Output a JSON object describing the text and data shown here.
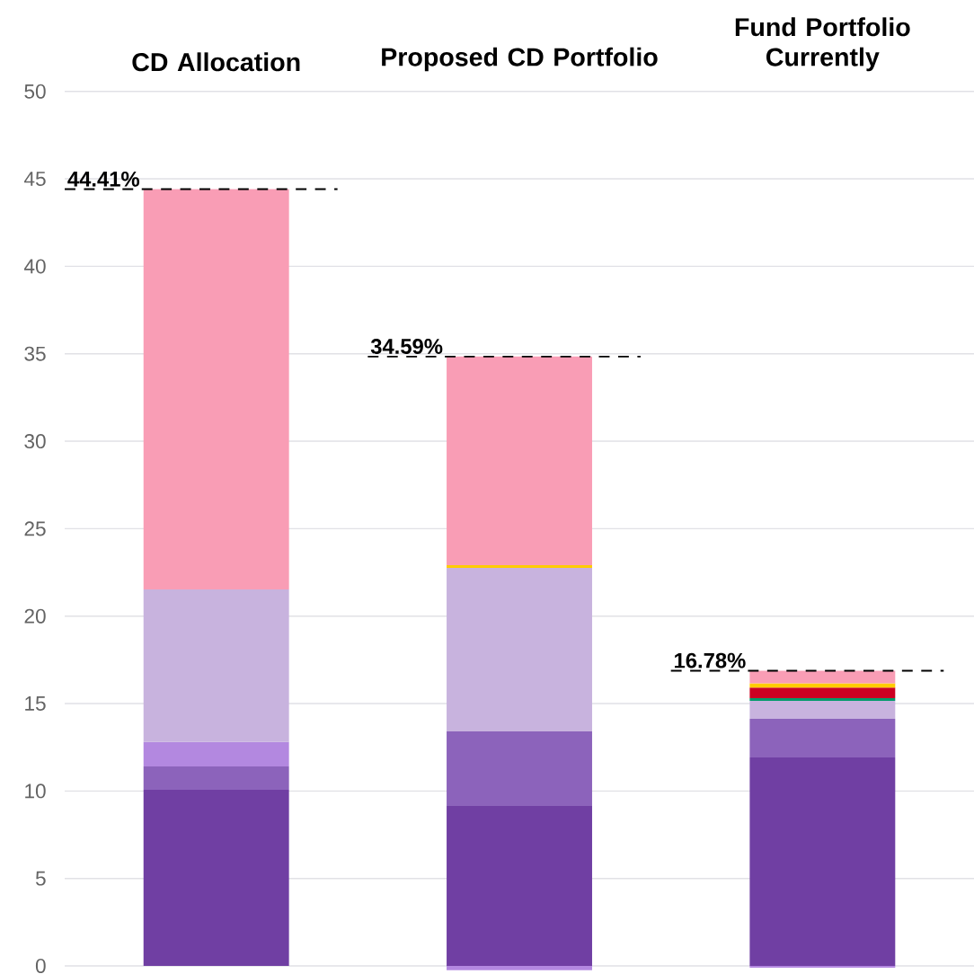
{
  "chart_data": {
    "type": "bar",
    "stacked": true,
    "categories": [
      "CD Allocation",
      "Proposed CD Portfolio",
      "Fund Portfolio Currently"
    ],
    "series": [
      {
        "color": "#703fa3",
        "values": [
          10.07,
          9.15,
          11.92
        ]
      },
      {
        "color": "#8c63bb",
        "values": [
          1.34,
          4.26,
          2.21
        ]
      },
      {
        "color": "#b388e0",
        "values": [
          1.39,
          -0.25,
          -0.1
        ]
      },
      {
        "color": "#c8b3de",
        "values": [
          8.73,
          9.35,
          1.03
        ]
      },
      {
        "color": "#009a6a",
        "values": [
          null,
          null,
          0.15
        ]
      },
      {
        "color": "#cc0022",
        "values": [
          null,
          null,
          0.6
        ]
      },
      {
        "color": "#ffcc00",
        "values": [
          null,
          0.15,
          0.25
        ]
      },
      {
        "color": "#f99db5",
        "values": [
          22.88,
          11.93,
          0.72
        ]
      }
    ],
    "totals": [
      "44.41%",
      "34.59%",
      "16.78%"
    ],
    "ylim": [
      -0.4,
      50
    ],
    "yticks": [
      0,
      5,
      10,
      15,
      20,
      25,
      30,
      35,
      40,
      45,
      50
    ],
    "grid": "y"
  }
}
